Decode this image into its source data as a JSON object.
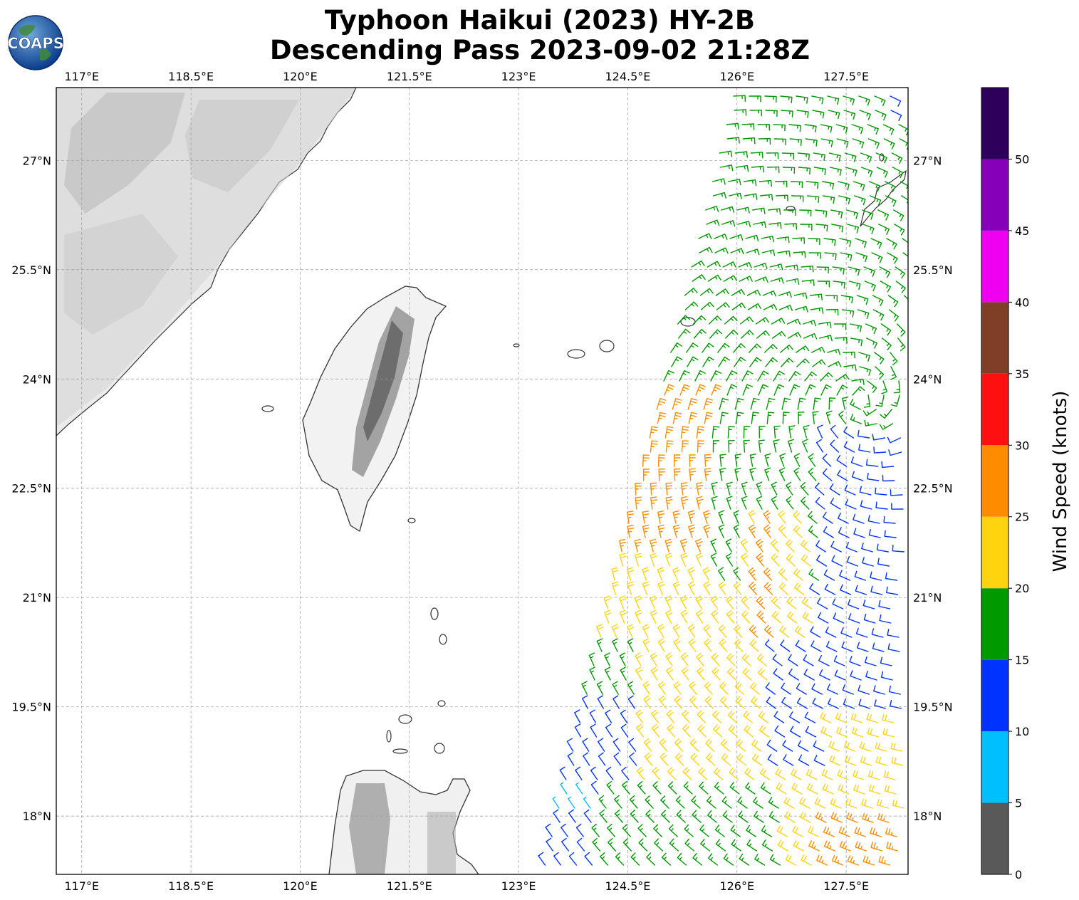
{
  "header": {
    "title_line1": "Typhoon Haikui (2023) HY-2B",
    "title_line2": "Descending Pass 2023-09-02 21:28Z"
  },
  "logo": {
    "text": "COAPS",
    "icon": "globe-icon"
  },
  "map": {
    "lon_ticks": [
      {
        "value": 117,
        "label": "117°E"
      },
      {
        "value": 118.5,
        "label": "118.5°E"
      },
      {
        "value": 120,
        "label": "120°E"
      },
      {
        "value": 121.5,
        "label": "121.5°E"
      },
      {
        "value": 123,
        "label": "123°E"
      },
      {
        "value": 124.5,
        "label": "124.5°E"
      },
      {
        "value": 126,
        "label": "126°E"
      },
      {
        "value": 127.5,
        "label": "127.5°E"
      }
    ],
    "lat_ticks": [
      {
        "value": 27,
        "label": "27°N"
      },
      {
        "value": 25.5,
        "label": "25.5°N"
      },
      {
        "value": 24,
        "label": "24°N"
      },
      {
        "value": 22.5,
        "label": "22.5°N"
      },
      {
        "value": 21,
        "label": "21°N"
      },
      {
        "value": 19.5,
        "label": "19.5°N"
      },
      {
        "value": 18,
        "label": "18°N"
      }
    ],
    "extent": {
      "lon_min": 116.65,
      "lon_max": 128.35,
      "lat_min": 17.2,
      "lat_max": 28.0
    },
    "grid": true,
    "land_shading": "grayscale terrain",
    "layer": "wind barbs (knots)"
  },
  "colorbar": {
    "label": "Wind Speed (knots)",
    "ticks": [
      "0",
      "5",
      "10",
      "15",
      "20",
      "25",
      "30",
      "35",
      "40",
      "45",
      "50"
    ],
    "bins": [
      {
        "from": 0,
        "to": 5,
        "color": "#595959"
      },
      {
        "from": 5,
        "to": 10,
        "color": "#00bfff"
      },
      {
        "from": 10,
        "to": 15,
        "color": "#0033ff"
      },
      {
        "from": 15,
        "to": 20,
        "color": "#009900"
      },
      {
        "from": 20,
        "to": 25,
        "color": "#ffd40f"
      },
      {
        "from": 25,
        "to": 30,
        "color": "#ff8c00"
      },
      {
        "from": 30,
        "to": 35,
        "color": "#ff1010"
      },
      {
        "from": 35,
        "to": 40,
        "color": "#7f3f26"
      },
      {
        "from": 40,
        "to": 45,
        "color": "#f000f0"
      },
      {
        "from": 45,
        "to": 50,
        "color": "#8500b8"
      },
      {
        "from": 50,
        "to": 55,
        "color": "#2e005c"
      }
    ]
  }
}
